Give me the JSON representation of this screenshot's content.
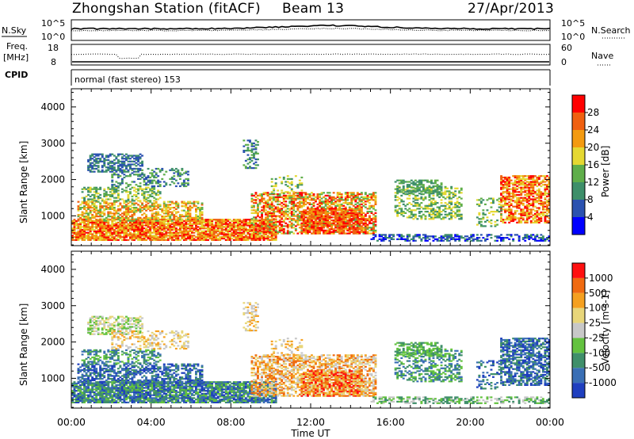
{
  "header": {
    "station": "Zhongshan Station (fitACF)",
    "beam": "Beam 13",
    "date": "27/Apr/2013"
  },
  "top_panels": {
    "nsky_label": "N.Sky",
    "nsky_ticks": [
      "10^5",
      "10^0"
    ],
    "nsearch_label": "N.Search",
    "nsearch_ticks": [
      "10^5",
      "10^0"
    ],
    "freq_label_line1": "Freq.",
    "freq_label_line2": "[MHz]",
    "freq_ticks": [
      "18",
      "8"
    ],
    "nave_label": "Nave",
    "nave_ticks": [
      "60",
      "0"
    ],
    "cpid_label": "CPID",
    "cpid_text": "normal (fast stereo) 153"
  },
  "chart_data": [
    {
      "type": "heatmap",
      "parameter": "power",
      "ylabel": "Slant Range [km]",
      "ylim": [
        180,
        4500
      ],
      "yticks": [
        "1000",
        "2000",
        "3000",
        "4000"
      ],
      "xlim": [
        0,
        24
      ],
      "colorbar_label": "Power [dB]",
      "colorbar_ticks": [
        "4",
        "8",
        "12",
        "16",
        "20",
        "24",
        "28"
      ],
      "colorbar_colors": [
        "#0000ff",
        "#2b52b0",
        "#3e8f6a",
        "#5fae4a",
        "#e5d832",
        "#f39a10",
        "#f06010",
        "#ff0000"
      ]
    },
    {
      "type": "heatmap",
      "parameter": "velocity",
      "ylabel": "Slant Range [km]",
      "ylim": [
        180,
        4500
      ],
      "yticks": [
        "1000",
        "2000",
        "3000",
        "4000"
      ],
      "xlim": [
        0,
        24
      ],
      "xlabel": "Time UT",
      "xticks": [
        "00:00",
        "04:00",
        "08:00",
        "12:00",
        "16:00",
        "20:00",
        "00:00"
      ],
      "colorbar_label": "Velocity [m s-1]",
      "colorbar_ticks": [
        "1000",
        "500",
        "100",
        "25",
        "-25",
        "-100",
        "-500",
        "-1000"
      ],
      "colorbar_colors": [
        "#1f3fbf",
        "#3a6fb5",
        "#3f8f6a",
        "#63c23f",
        "#c8c8c8",
        "#e8d67a",
        "#f5a020",
        "#f06a10",
        "#ff1010"
      ]
    }
  ]
}
